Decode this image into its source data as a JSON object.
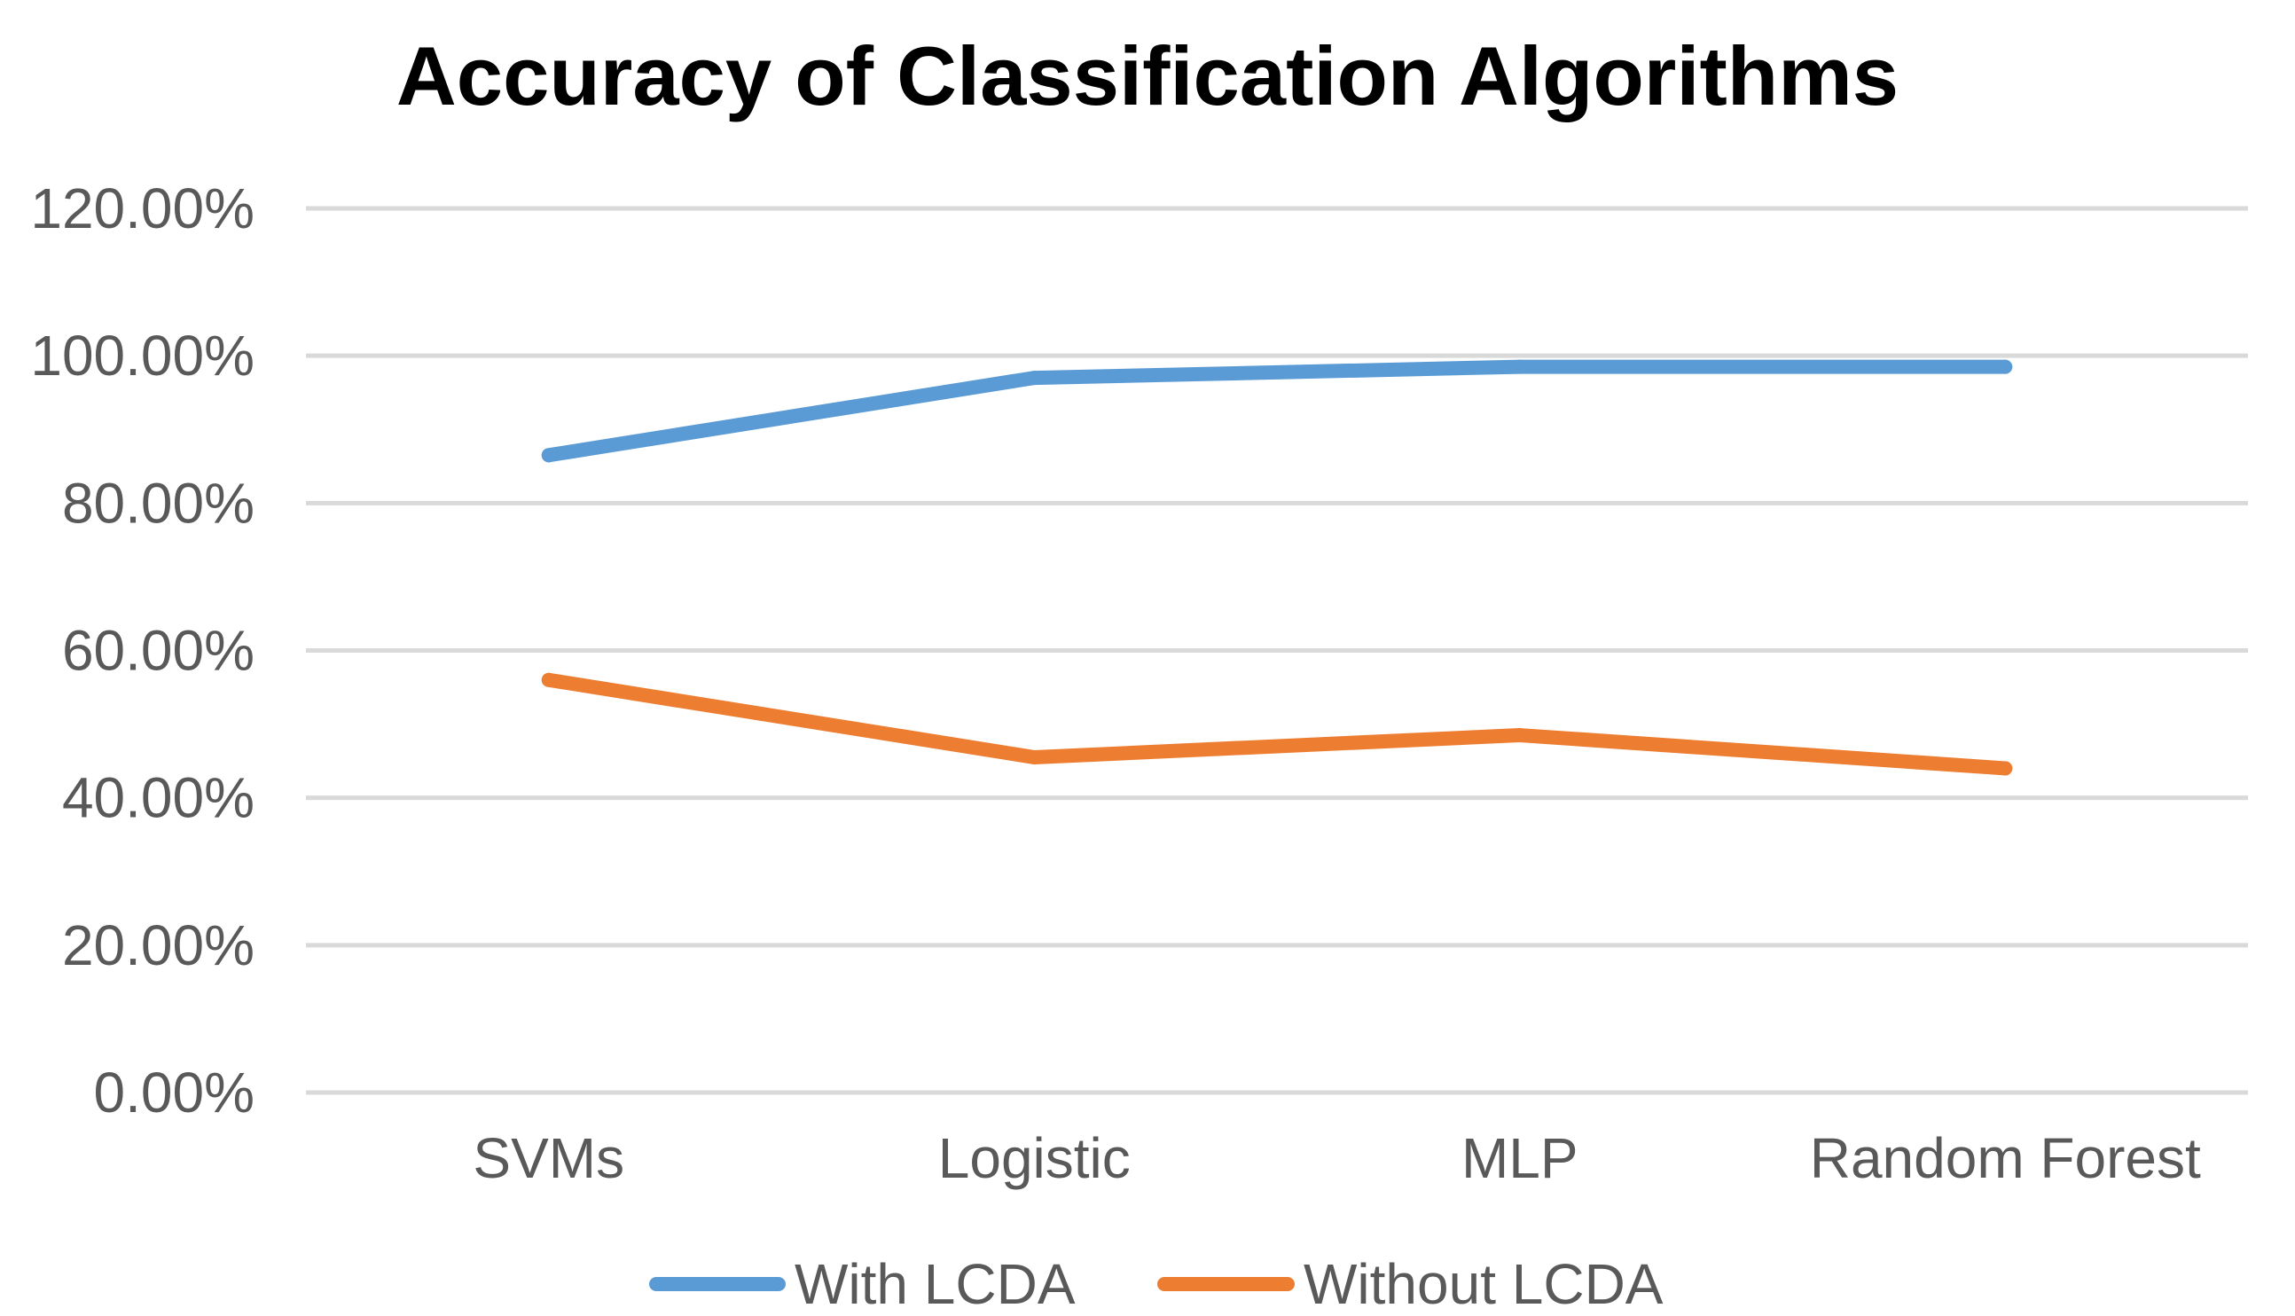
{
  "chart_data": {
    "type": "line",
    "title": "Accuracy of Classification Algorithms",
    "xlabel": "",
    "ylabel": "",
    "categories": [
      "SVMs",
      "Logistic",
      "MLP",
      "Random Forest"
    ],
    "series": [
      {
        "name": "With LCDA",
        "color": "#5b9bd5",
        "values": [
          86.5,
          97.0,
          98.5,
          98.5
        ]
      },
      {
        "name": "Without LCDA",
        "color": "#ed7d31",
        "values": [
          56.0,
          45.5,
          48.5,
          44.0
        ]
      }
    ],
    "ylim": [
      0,
      120
    ],
    "yticks": [
      0,
      20,
      40,
      60,
      80,
      100,
      120
    ],
    "ytick_labels": [
      "0.00%",
      "20.00%",
      "40.00%",
      "60.00%",
      "80.00%",
      "100.00%",
      "120.00%"
    ],
    "grid": true,
    "legend_position": "bottom"
  }
}
